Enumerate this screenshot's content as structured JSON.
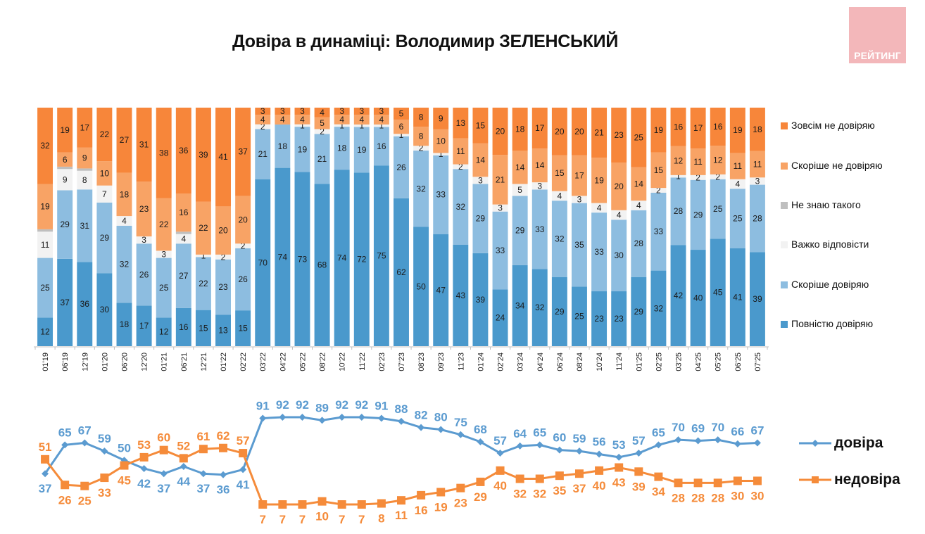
{
  "header": {
    "title": "Довіра в динаміці: Володимир ЗЕЛЕНСЬКИЙ",
    "logo_text": "РЕЙТИНГ",
    "logo_color": "#f3b7ba"
  },
  "chart_data": [
    {
      "type": "bar",
      "stacked": true,
      "normalized": true,
      "title": "Довіра в динаміці: Володимир ЗЕЛЕНСЬКИЙ",
      "xlabel": "",
      "ylabel": "",
      "ylim": [
        0,
        100
      ],
      "grid": false,
      "legend_position": "right",
      "categories": [
        "01'19",
        "06'19",
        "12'19",
        "01'20",
        "06'20",
        "12'20",
        "01'21",
        "06'21",
        "12'21",
        "01'22",
        "02'22",
        "03'22",
        "04'22",
        "05'22",
        "08'22",
        "10'22",
        "11'22",
        "02'23",
        "07'23",
        "08'23",
        "09'23",
        "11'23",
        "01'24",
        "02'24",
        "03'24",
        "04'24",
        "06'24",
        "08'24",
        "10'24",
        "11'24",
        "01'25",
        "02'25",
        "03'25",
        "04'25",
        "05'25",
        "06'25",
        "07'25"
      ],
      "series": [
        {
          "name": "Повністю довіряю",
          "color": "#4a99cc",
          "values": [
            12,
            37,
            36,
            30,
            18,
            17,
            12,
            16,
            15,
            13,
            15,
            70,
            74,
            73,
            68,
            74,
            72,
            75,
            62,
            50,
            47,
            43,
            39,
            24,
            34,
            32,
            29,
            25,
            23,
            23,
            29,
            32,
            42,
            40,
            45,
            41,
            39
          ]
        },
        {
          "name": "Скоріше довіряю",
          "color": "#8dbde0",
          "values": [
            25,
            29,
            31,
            29,
            32,
            26,
            25,
            27,
            22,
            23,
            26,
            21,
            18,
            19,
            21,
            18,
            19,
            16,
            26,
            32,
            33,
            32,
            29,
            33,
            29,
            33,
            32,
            35,
            33,
            30,
            28,
            33,
            28,
            29,
            25,
            25,
            28
          ]
        },
        {
          "name": "Важко відповісти",
          "color": "#f2f2f2",
          "values": [
            11,
            9,
            8,
            7,
            4,
            3,
            3,
            4,
            1,
            2,
            2,
            2,
            0,
            1,
            2,
            1,
            1,
            1,
            1,
            2,
            1,
            2,
            3,
            3,
            5,
            3,
            4,
            3,
            4,
            4,
            4,
            2,
            1,
            2,
            2,
            4,
            3
          ]
        },
        {
          "name": "Не знаю такого",
          "color": "#bfbfbf",
          "values": [
            1,
            1,
            1,
            0,
            0,
            0,
            0,
            1,
            0,
            0,
            0,
            0,
            0,
            0,
            0,
            0,
            0,
            0,
            0,
            0,
            0,
            0,
            0,
            0,
            0,
            0,
            0,
            0,
            0,
            0,
            0,
            0,
            0,
            0,
            0,
            0,
            0
          ]
        },
        {
          "name": "Скоріше не довіряю",
          "color": "#f8a365",
          "values": [
            19,
            6,
            9,
            10,
            18,
            23,
            22,
            16,
            22,
            20,
            20,
            4,
            4,
            4,
            5,
            4,
            4,
            4,
            6,
            8,
            10,
            11,
            14,
            21,
            14,
            14,
            15,
            17,
            19,
            20,
            14,
            15,
            12,
            11,
            12,
            11,
            11
          ]
        },
        {
          "name": "Зовсім не довіряю",
          "color": "#f7863a",
          "values": [
            32,
            19,
            17,
            22,
            27,
            31,
            38,
            36,
            39,
            41,
            37,
            3,
            3,
            3,
            4,
            3,
            3,
            3,
            5,
            8,
            9,
            13,
            15,
            20,
            18,
            17,
            20,
            20,
            21,
            23,
            25,
            19,
            16,
            17,
            16,
            19,
            18
          ]
        }
      ],
      "labels_shown_for_zero": false
    },
    {
      "type": "line",
      "title": "",
      "xlabel": "",
      "ylabel": "",
      "grid": false,
      "legend_position": "right",
      "categories": [
        "01'19",
        "06'19",
        "12'19",
        "01'20",
        "06'20",
        "12'20",
        "01'21",
        "06'21",
        "12'21",
        "01'22",
        "02'22",
        "03'22",
        "04'22",
        "05'22",
        "08'22",
        "10'22",
        "11'22",
        "02'23",
        "07'23",
        "08'23",
        "09'23",
        "11'23",
        "01'24",
        "02'24",
        "03'24",
        "04'24",
        "06'24",
        "08'24",
        "10'24",
        "11'24",
        "01'25",
        "02'25",
        "03'25",
        "04'25",
        "05'25",
        "06'25",
        "07'25"
      ],
      "series": [
        {
          "name": "довіра",
          "color": "#5b9bd0",
          "marker": "diamond",
          "values": [
            37,
            65,
            67,
            59,
            50,
            42,
            37,
            44,
            37,
            36,
            41,
            91,
            92,
            92,
            89,
            92,
            92,
            91,
            88,
            82,
            80,
            75,
            68,
            57,
            64,
            65,
            60,
            59,
            56,
            53,
            57,
            65,
            70,
            69,
            70,
            66,
            67
          ]
        },
        {
          "name": "недовіра",
          "color": "#f58b3a",
          "marker": "square",
          "values": [
            51,
            26,
            25,
            33,
            45,
            53,
            60,
            52,
            61,
            62,
            57,
            7,
            7,
            7,
            10,
            7,
            7,
            8,
            11,
            16,
            19,
            23,
            29,
            40,
            32,
            32,
            35,
            37,
            40,
            43,
            39,
            34,
            28,
            28,
            28,
            30,
            30
          ]
        }
      ]
    }
  ],
  "legend": {
    "items": [
      {
        "label": "Зовсім не довіряю",
        "color": "#f7863a"
      },
      {
        "label": "Скоріше не довіряю",
        "color": "#f8a365"
      },
      {
        "label": "Не знаю такого",
        "color": "#bfbfbf"
      },
      {
        "label": "Важко відповісти",
        "color": "#f2f2f2"
      },
      {
        "label": "Скоріше довіряю",
        "color": "#8dbde0"
      },
      {
        "label": "Повністю довіряю",
        "color": "#4a99cc"
      }
    ]
  },
  "line_legend": {
    "items": [
      {
        "label": "довіра",
        "color": "#5b9bd0",
        "marker": "diamond"
      },
      {
        "label": "недовіра",
        "color": "#f58b3a",
        "marker": "square"
      }
    ]
  }
}
